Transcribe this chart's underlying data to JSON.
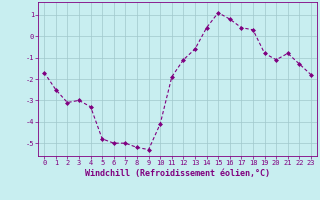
{
  "x": [
    0,
    1,
    2,
    3,
    4,
    5,
    6,
    7,
    8,
    9,
    10,
    11,
    12,
    13,
    14,
    15,
    16,
    17,
    18,
    19,
    20,
    21,
    22,
    23
  ],
  "y": [
    -1.7,
    -2.5,
    -3.1,
    -3.0,
    -3.3,
    -4.8,
    -5.0,
    -5.0,
    -5.2,
    -5.3,
    -4.1,
    -1.9,
    -1.1,
    -0.6,
    0.4,
    1.1,
    0.8,
    0.4,
    0.3,
    -0.8,
    -1.1,
    -0.8,
    -1.3,
    -1.8
  ],
  "line_color": "#800080",
  "marker_color": "#800080",
  "bg_color": "#c8eef0",
  "grid_color": "#a0c8cc",
  "xlabel": "Windchill (Refroidissement éolien,°C)",
  "xlim_min": -0.5,
  "xlim_max": 23.5,
  "ylim_min": -5.6,
  "ylim_max": 1.6,
  "yticks": [
    -5,
    -4,
    -3,
    -2,
    -1,
    0,
    1
  ],
  "xticks": [
    0,
    1,
    2,
    3,
    4,
    5,
    6,
    7,
    8,
    9,
    10,
    11,
    12,
    13,
    14,
    15,
    16,
    17,
    18,
    19,
    20,
    21,
    22,
    23
  ],
  "font_color": "#800080",
  "xlabel_fontsize": 6.0,
  "tick_fontsize": 5.0,
  "line_width": 0.8,
  "marker_size": 2.0
}
